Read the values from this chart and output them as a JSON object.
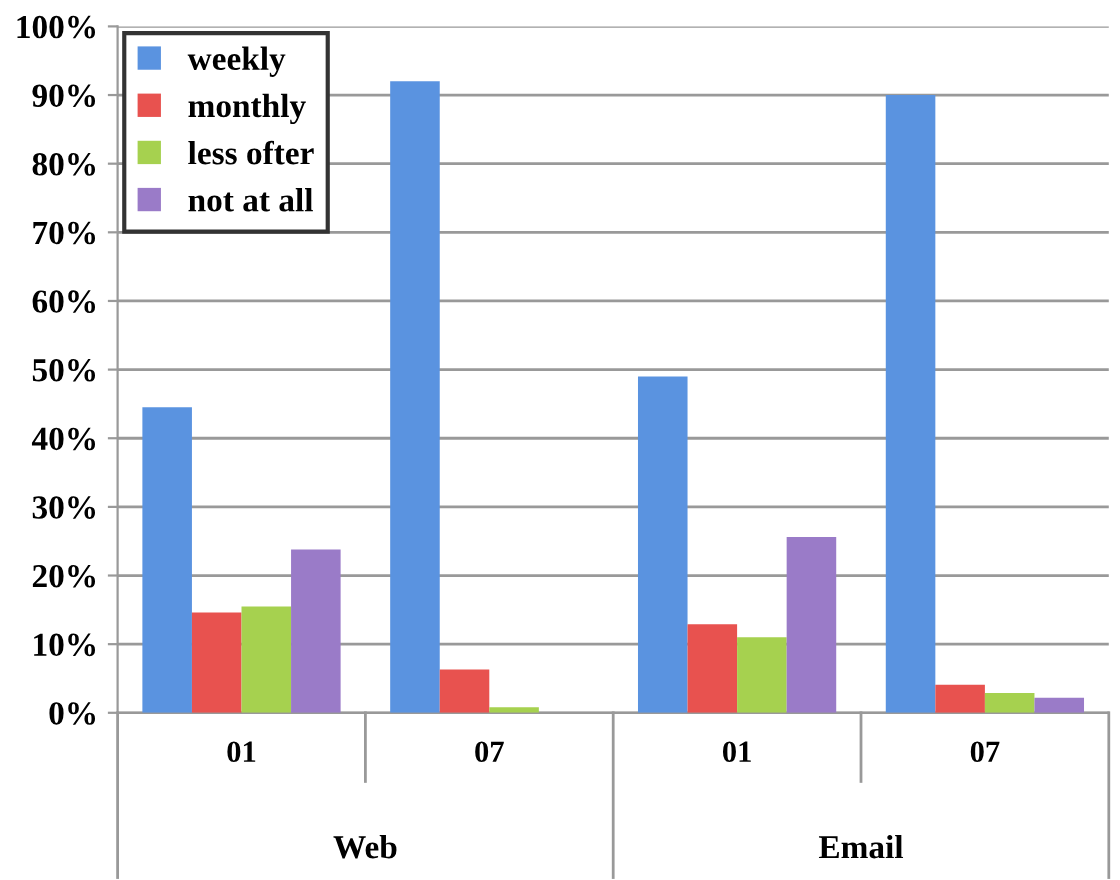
{
  "chart_data": {
    "type": "bar",
    "categories": [
      "01",
      "07",
      "01",
      "07"
    ],
    "annotations": [
      "Web",
      "Email"
    ],
    "series": [
      {
        "name": "weekly",
        "color": "#5a93e0",
        "values": [
          44.5,
          92,
          49,
          90
        ]
      },
      {
        "name": "monthly",
        "color": "#e8524f",
        "values": [
          14.6,
          6.3,
          12.9,
          4.1
        ]
      },
      {
        "name": "less ofter",
        "color": "#a6d14f",
        "values": [
          15.5,
          0.8,
          11,
          2.9
        ]
      },
      {
        "name": "not at all",
        "color": "#9a7bc8",
        "values": [
          23.8,
          0,
          25.6,
          2.2
        ]
      }
    ],
    "ylim": [
      0,
      100
    ],
    "yticks": [
      {
        "value": 0,
        "label": "0%"
      },
      {
        "value": 10,
        "label": "10%"
      },
      {
        "value": 20,
        "label": "20%"
      },
      {
        "value": 30,
        "label": "30%"
      },
      {
        "value": 40,
        "label": "40%"
      },
      {
        "value": 50,
        "label": "50%"
      },
      {
        "value": 60,
        "label": "60%"
      },
      {
        "value": 70,
        "label": "70%"
      },
      {
        "value": 80,
        "label": "80%"
      },
      {
        "value": 90,
        "label": "90%"
      },
      {
        "value": 100,
        "label": "100%"
      }
    ],
    "grid": "y",
    "legend": "top left"
  }
}
